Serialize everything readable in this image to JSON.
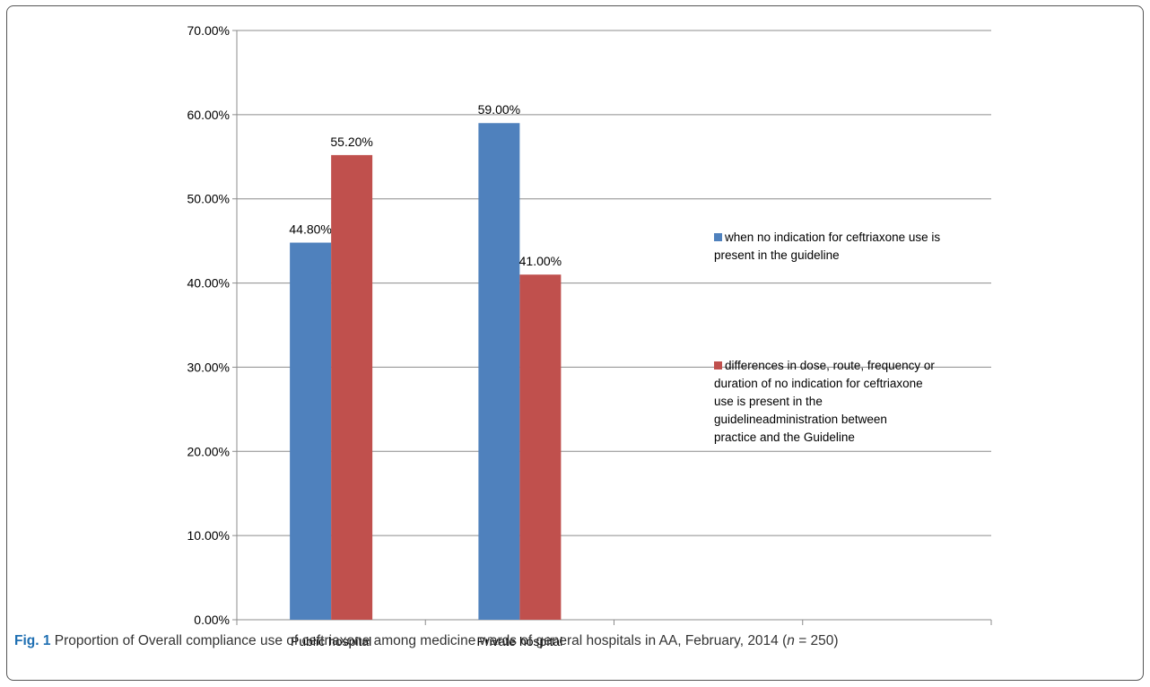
{
  "chart_data": {
    "type": "bar",
    "categories": [
      "Public hospital",
      "Private hospital",
      "",
      ""
    ],
    "series": [
      {
        "name": "when no indication for ceftriaxone use is present in the guideline",
        "color": "#4f81bd",
        "values": [
          44.8,
          59.0,
          null,
          null
        ],
        "labels": [
          "44.80%",
          "59.00%",
          "",
          ""
        ]
      },
      {
        "name": "differences in dose, route, frequency or duration of no indication for ceftriaxone use is present in the guidelineadministration between practice and the Guideline",
        "color": "#c0504d",
        "values": [
          55.2,
          41.0,
          null,
          null
        ],
        "labels": [
          "55.20%",
          "41.00%",
          "",
          ""
        ]
      }
    ],
    "ylim": [
      0,
      70
    ],
    "yticks": [
      "0.00%",
      "10.00%",
      "20.00%",
      "30.00%",
      "40.00%",
      "50.00%",
      "60.00%",
      "70.00%"
    ],
    "grid": true,
    "legend_position": "right"
  },
  "legend": {
    "series1": {
      "line1": "when no indication for ceftriaxone use is",
      "line2": "present in the guideline"
    },
    "series2": {
      "lines": [
        "differences in dose, route, frequency or",
        "duration of no indication for ceftriaxone",
        "use is present in the",
        "guidelineadministration between",
        "practice and the Guideline"
      ]
    }
  },
  "caption": {
    "fig_label": "Fig. 1",
    "text_before": " Proportion of Overall compliance use of ceftriaxone among medicine wards of general hospitals in AA, February, 2014 (",
    "n_label": "n",
    "text_after": " = 250)"
  }
}
